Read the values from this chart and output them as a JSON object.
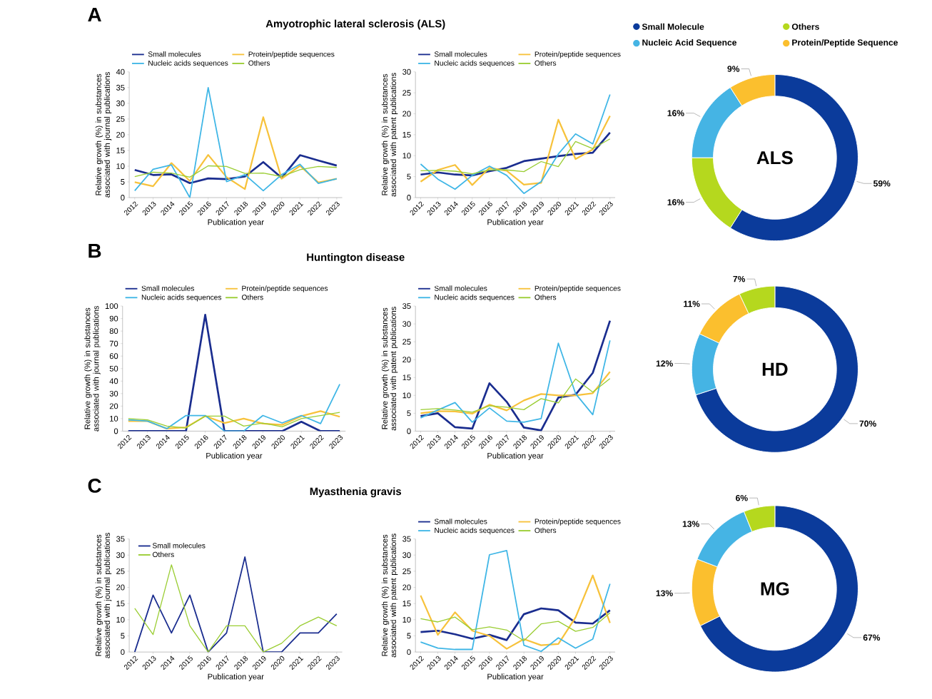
{
  "chart_data": [
    {
      "type": "line",
      "title": "Amyotrophic lateral sclerosis (ALS)",
      "annotations": [
        "A"
      ],
      "categories": [
        "2012",
        "2013",
        "2014",
        "2015",
        "2016",
        "2017",
        "2018",
        "2019",
        "2020",
        "2021",
        "2022",
        "2023"
      ],
      "xlabel": "Publication year",
      "ylabel": "Relative growth (%) in substances associated with journal publications",
      "ylim": [
        0,
        40
      ],
      "yticks": [
        0,
        5,
        10,
        15,
        20,
        25,
        30,
        35,
        40
      ],
      "legend": "top",
      "series": [
        {
          "name": "Small molecules",
          "color": "#1a2d8f",
          "values": [
            8.8,
            7.2,
            7.4,
            4.6,
            6.1,
            5.9,
            6.7,
            11.3,
            6.3,
            13.5,
            11.8,
            10.2
          ]
        },
        {
          "name": "Protein/peptide sequences",
          "color": "#f7c23b",
          "values": [
            4.9,
            3.6,
            11.0,
            5.3,
            13.6,
            6.5,
            2.7,
            25.6,
            6.0,
            10.1,
            4.8,
            6.0
          ]
        },
        {
          "name": "Nucleic acids sequences",
          "color": "#3fb6e6",
          "values": [
            2.2,
            9.0,
            10.4,
            0,
            35,
            5.1,
            7.3,
            2.2,
            7.3,
            10.6,
            4.5,
            6.0
          ]
        },
        {
          "name": "Others",
          "color": "#9acd32",
          "values": [
            6.7,
            8.1,
            7.8,
            6.5,
            10.1,
            9.9,
            7.7,
            7.8,
            6.7,
            8.9,
            9.9,
            9.6
          ]
        }
      ]
    },
    {
      "type": "line",
      "categories": [
        "2012",
        "2013",
        "2014",
        "2015",
        "2016",
        "2017",
        "2018",
        "2019",
        "2020",
        "2021",
        "2022",
        "2023"
      ],
      "xlabel": "Publication year",
      "ylabel": "Relative growth (%) in substances associated with patent publications",
      "ylim": [
        0,
        30
      ],
      "yticks": [
        0,
        5,
        10,
        15,
        20,
        25,
        30
      ],
      "legend": "top",
      "series": [
        {
          "name": "Small molecules",
          "color": "#1a2d8f",
          "values": [
            5.5,
            6.0,
            5.5,
            5.3,
            6.3,
            7.1,
            8.7,
            9.3,
            9.9,
            10.4,
            10.7,
            15.5
          ]
        },
        {
          "name": "Protein/peptide sequences",
          "color": "#f7c23b",
          "values": [
            3.8,
            6.6,
            7.8,
            3.0,
            7.1,
            6.4,
            3.1,
            3.5,
            18.6,
            9.2,
            11.5,
            19.5
          ]
        },
        {
          "name": "Nucleic acids sequences",
          "color": "#3fb6e6",
          "values": [
            8.0,
            4.4,
            2.0,
            5.3,
            7.5,
            5.3,
            1.0,
            3.8,
            10.4,
            15.2,
            12.8,
            24.6
          ]
        },
        {
          "name": "Others",
          "color": "#9acd32",
          "values": [
            6.4,
            6.5,
            6.3,
            5.7,
            6.6,
            6.6,
            6.2,
            8.6,
            7.4,
            13.4,
            11.7,
            14.0
          ]
        }
      ]
    },
    {
      "type": "donut",
      "categories": [
        "Small Molecule",
        "Others",
        "Nucleic Acid Sequence",
        "Protein/Peptide Sequence"
      ],
      "values": [
        59,
        16,
        16,
        9
      ],
      "value_labels": [
        "59%",
        "16%",
        "16%",
        "9%"
      ],
      "colors": [
        "#0b3b9b",
        "#b5d81e",
        "#45b4e4",
        "#fbbf2e"
      ],
      "annotations": [
        "ALS"
      ],
      "legend": "top"
    },
    {
      "type": "line",
      "title": "Huntington disease",
      "annotations": [
        "B"
      ],
      "categories": [
        "2012",
        "2013",
        "2014",
        "2015",
        "2016",
        "2017",
        "2018",
        "2019",
        "2020",
        "2021",
        "2022",
        "2023"
      ],
      "xlabel": "Publication year",
      "ylabel": "Relative growth (%) in substances associated with journal publications",
      "ylim": [
        0,
        100
      ],
      "yticks": [
        0,
        10,
        20,
        30,
        40,
        50,
        60,
        70,
        80,
        90,
        100
      ],
      "legend": "top",
      "series": [
        {
          "name": "Small molecules",
          "color": "#1a2d8f",
          "values": [
            0,
            0,
            0,
            0,
            93,
            0,
            0,
            0,
            0,
            7.5,
            0,
            0
          ]
        },
        {
          "name": "Protein/peptide sequences",
          "color": "#f7c23b",
          "values": [
            8,
            8,
            2,
            3,
            12,
            6.5,
            10,
            6,
            5,
            12,
            16,
            11.5
          ]
        },
        {
          "name": "Nucleic acids sequences",
          "color": "#3fb6e6",
          "values": [
            9,
            8,
            2,
            12.5,
            12.5,
            0,
            0,
            12.5,
            6.5,
            12.5,
            6,
            37.5
          ]
        },
        {
          "name": "Others",
          "color": "#9acd32",
          "values": [
            10,
            9,
            4,
            2.5,
            12,
            12,
            4,
            6.5,
            3.5,
            10,
            12.5,
            15
          ]
        }
      ]
    },
    {
      "type": "line",
      "categories": [
        "2012",
        "2013",
        "2014",
        "2015",
        "2016",
        "2017",
        "2018",
        "2019",
        "2020",
        "2021",
        "2022",
        "2023"
      ],
      "xlabel": "Publication year",
      "ylabel": "Relative growth (%) in substances associated with patent publications",
      "ylim": [
        0,
        35
      ],
      "yticks": [
        0,
        5,
        10,
        15,
        20,
        25,
        30,
        35
      ],
      "legend": "top",
      "series": [
        {
          "name": "Small molecules",
          "color": "#1a2d8f",
          "values": [
            4.2,
            5.0,
            1.1,
            0.7,
            13.4,
            8.2,
            1.0,
            0.2,
            9.4,
            10.2,
            16.3,
            30.9
          ]
        },
        {
          "name": "Protein/peptide sequences",
          "color": "#f7c23b",
          "values": [
            5.0,
            5.6,
            5.5,
            4.9,
            7.4,
            5.8,
            8.6,
            10.4,
            10.0,
            10.0,
            10.6,
            16.6
          ]
        },
        {
          "name": "Nucleic acids sequences",
          "color": "#3fb6e6",
          "values": [
            3.7,
            5.9,
            8.0,
            2.5,
            6.5,
            2.8,
            2.5,
            3.5,
            24.6,
            10.5,
            4.6,
            25.4
          ]
        },
        {
          "name": "Others",
          "color": "#9acd32",
          "values": [
            6.0,
            6.3,
            5.9,
            5.3,
            7.1,
            6.7,
            6.0,
            9.1,
            7.9,
            14.6,
            10.9,
            14.7
          ]
        }
      ]
    },
    {
      "type": "donut",
      "categories": [
        null,
        null,
        null,
        null
      ],
      "values": [
        70,
        12,
        11,
        7
      ],
      "value_labels": [
        "70%",
        "12%",
        "11%",
        "7%"
      ],
      "colors": [
        "#0b3b9b",
        "#45b4e4",
        "#fbbf2e",
        "#b5d81e"
      ],
      "annotations": [
        "HD"
      ]
    },
    {
      "type": "line",
      "title": "Myasthenia gravis",
      "annotations": [
        "C"
      ],
      "categories": [
        "2012",
        "2013",
        "2014",
        "2015",
        "2016",
        "2017",
        "2018",
        "2019",
        "2020",
        "2021",
        "2022",
        "2023"
      ],
      "xlabel": "Publication year",
      "ylabel": "Relative growth (%) in substances associated with journal publications",
      "ylim": [
        0,
        35
      ],
      "yticks": [
        0,
        5,
        10,
        15,
        20,
        25,
        30,
        35
      ],
      "legend": "top left",
      "series": [
        {
          "name": "Small molecules",
          "color": "#1a2d8f",
          "values": [
            0,
            17.6,
            5.9,
            17.6,
            0,
            5.9,
            29.4,
            0,
            0,
            5.9,
            5.9,
            11.8
          ]
        },
        {
          "name": "Others",
          "color": "#9acd32",
          "values": [
            13.5,
            5.4,
            27,
            8.1,
            0,
            8.1,
            8.1,
            0,
            2.7,
            8.1,
            10.8,
            8.1
          ]
        }
      ]
    },
    {
      "type": "line",
      "categories": [
        "2012",
        "2013",
        "2014",
        "2015",
        "2016",
        "2017",
        "2018",
        "2019",
        "2020",
        "2021",
        "2022",
        "2023"
      ],
      "xlabel": "Publication year",
      "ylabel": "Relative growth (%) in substances associated with patent publications",
      "ylim": [
        0,
        35
      ],
      "yticks": [
        0,
        5,
        10,
        15,
        20,
        25,
        30,
        35
      ],
      "legend": "top",
      "series": [
        {
          "name": "Small molecules",
          "color": "#1a2d8f",
          "values": [
            6.2,
            6.6,
            5.5,
            4.1,
            5.3,
            3.7,
            11.7,
            13.5,
            12.9,
            9.1,
            8.8,
            12.9
          ]
        },
        {
          "name": "Protein/peptide sequences",
          "color": "#f7c23b",
          "values": [
            17.5,
            5.3,
            12.3,
            6.6,
            5.0,
            1.0,
            4.0,
            2.1,
            2.5,
            10.7,
            23.7,
            9.0
          ]
        },
        {
          "name": "Nucleic acids sequences",
          "color": "#3fb6e6",
          "values": [
            3.1,
            1.2,
            0.8,
            0.8,
            30.1,
            31.4,
            2.1,
            0.2,
            4.4,
            1.2,
            4.0,
            21.1
          ]
        },
        {
          "name": "Others",
          "color": "#9acd32",
          "values": [
            10.3,
            9.3,
            10.8,
            6.9,
            7.8,
            6.8,
            3.5,
            8.7,
            9.5,
            6.4,
            7.6,
            12.1
          ]
        }
      ]
    },
    {
      "type": "donut",
      "categories": [
        null,
        null,
        null,
        null
      ],
      "values": [
        67,
        13,
        13,
        6
      ],
      "value_labels": [
        "67%",
        "13%",
        "13%",
        "6%"
      ],
      "colors": [
        "#0b3b9b",
        "#fbbf2e",
        "#45b4e4",
        "#b5d81e"
      ],
      "annotations": [
        "MG"
      ]
    }
  ]
}
